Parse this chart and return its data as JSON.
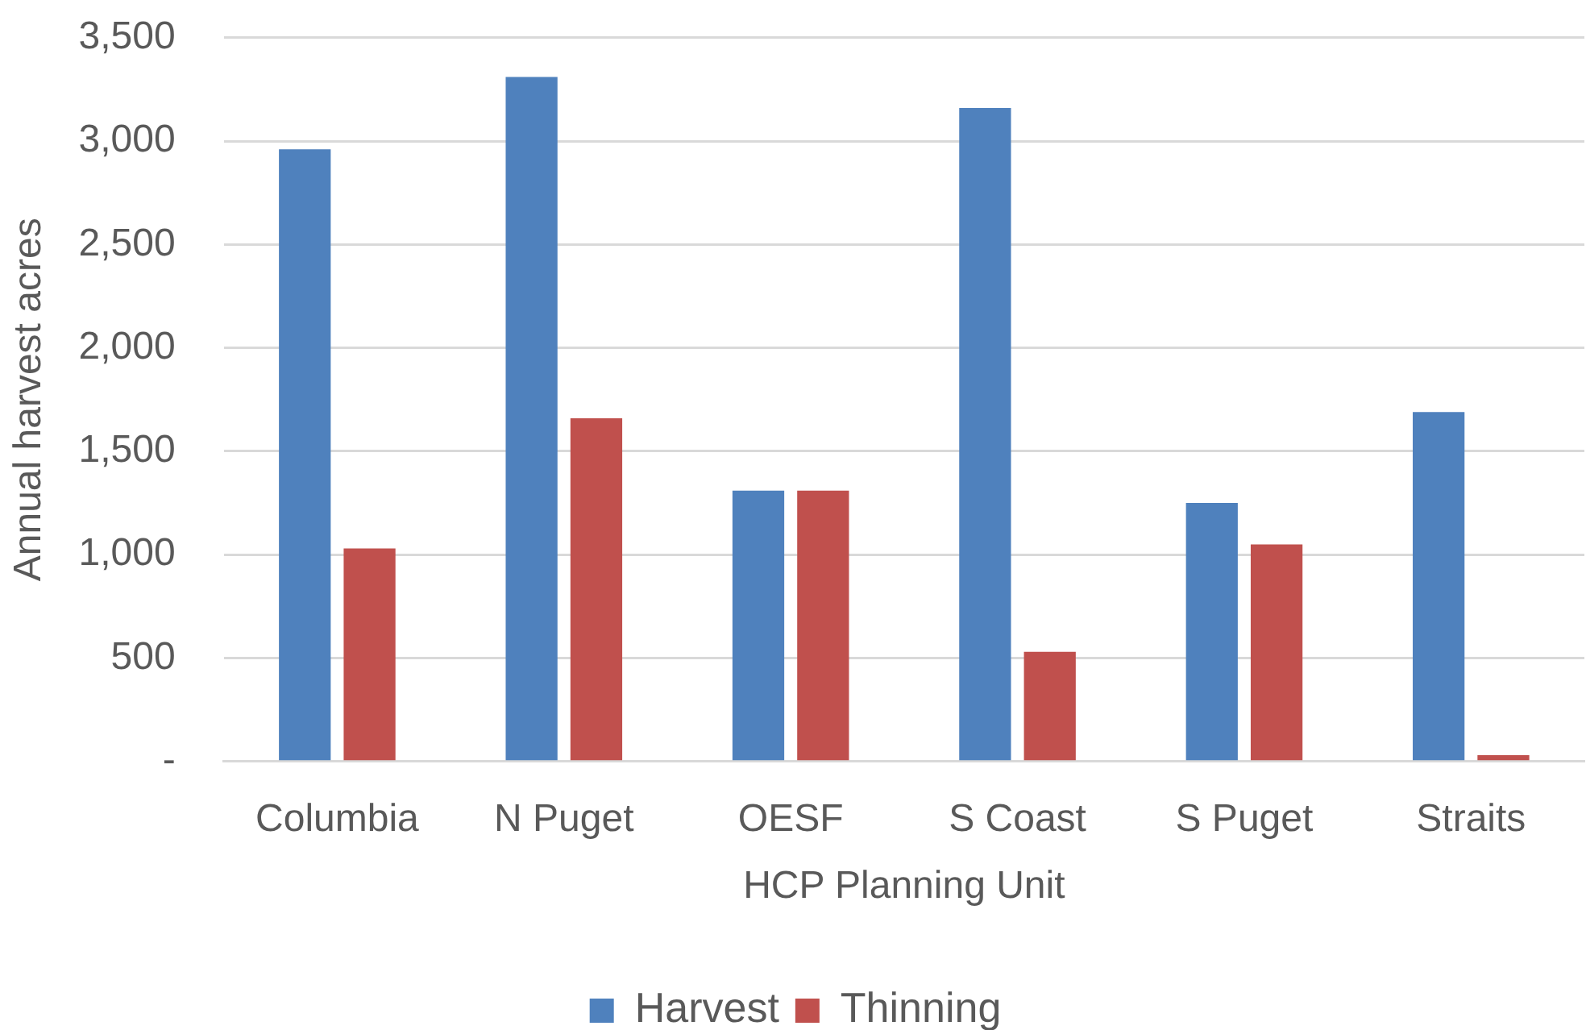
{
  "chart_data": {
    "type": "bar",
    "xlabel": "HCP Planning Unit",
    "ylabel": "Annual harvest acres",
    "categories": [
      "Columbia",
      "N Puget",
      "OESF",
      "S Coast",
      "S Puget",
      "Straits"
    ],
    "series": [
      {
        "name": "Harvest",
        "color": "#4f81bd",
        "values": [
          2960,
          3310,
          1310,
          3160,
          1250,
          1690
        ]
      },
      {
        "name": "Thinning",
        "color": "#c0504d",
        "values": [
          1030,
          1660,
          1310,
          530,
          1050,
          30
        ]
      }
    ],
    "ylim": [
      0,
      3500
    ],
    "yticks": [
      {
        "value": 0,
        "label": "-"
      },
      500,
      {
        "value": 1000,
        "label": "1,000"
      },
      {
        "value": 1500,
        "label": "1,500"
      },
      {
        "value": 2000,
        "label": "2,000"
      },
      {
        "value": 2500,
        "label": "2,500"
      },
      {
        "value": 3000,
        "label": "3,000"
      },
      {
        "value": 3500,
        "label": "3,500"
      }
    ],
    "grid": "y",
    "legend": "bottom"
  }
}
